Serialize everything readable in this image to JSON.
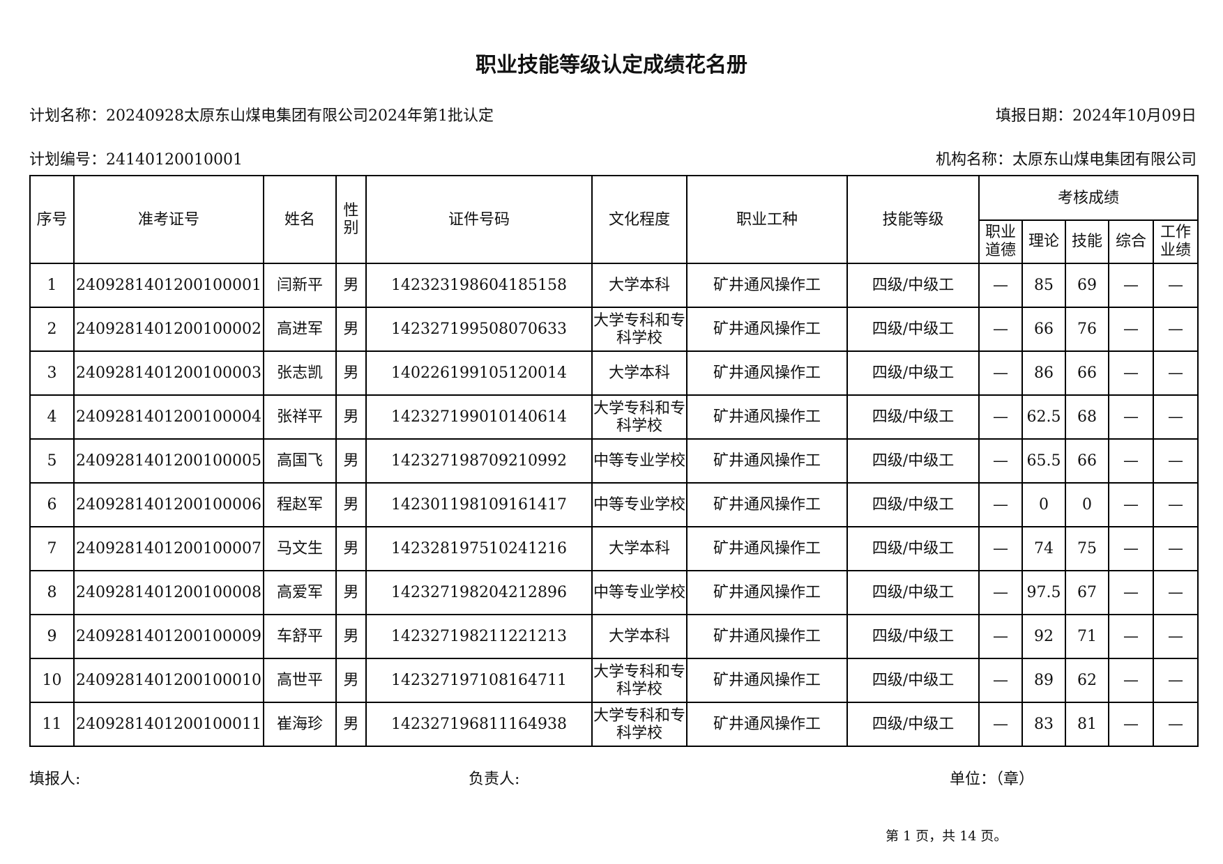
{
  "title": "职业技能等级认定成绩花名册",
  "info": {
    "plan_name_label": "计划名称：",
    "plan_name": "20240928太原东山煤电集团有限公司2024年第1批认定",
    "report_date_label": "填报日期：",
    "report_date": "2024年10月09日",
    "plan_no_label": "计划编号：",
    "plan_no": "24140120010001",
    "org_label": "机构名称：",
    "org": "太原东山煤电集团有限公司"
  },
  "table": {
    "headers": [
      "序号",
      "准考证号",
      "姓名",
      "性别",
      "证件号码",
      "文化程度",
      "职业工种",
      "技能等级"
    ],
    "score_group": "考核成绩",
    "score_headers": [
      "职业道德",
      "理论",
      "技能",
      "综合",
      "工作业绩"
    ],
    "rows": [
      {
        "no": "1",
        "exam_id": "2409281401200100001",
        "name": "闫新平",
        "gender": "男",
        "id_no": "142323198604185158",
        "edu": "大学本科",
        "job": "矿井通风操作工",
        "level": "四级/中级工",
        "ethics": "—",
        "theory": "85",
        "skill": "69",
        "overall": "—",
        "performance": "—"
      },
      {
        "no": "2",
        "exam_id": "2409281401200100002",
        "name": "高进军",
        "gender": "男",
        "id_no": "142327199508070633",
        "edu": "大学专科和专科学校",
        "job": "矿井通风操作工",
        "level": "四级/中级工",
        "ethics": "—",
        "theory": "66",
        "skill": "76",
        "overall": "—",
        "performance": "—"
      },
      {
        "no": "3",
        "exam_id": "2409281401200100003",
        "name": "张志凯",
        "gender": "男",
        "id_no": "140226199105120014",
        "edu": "大学本科",
        "job": "矿井通风操作工",
        "level": "四级/中级工",
        "ethics": "—",
        "theory": "86",
        "skill": "66",
        "overall": "—",
        "performance": "—"
      },
      {
        "no": "4",
        "exam_id": "2409281401200100004",
        "name": "张祥平",
        "gender": "男",
        "id_no": "142327199010140614",
        "edu": "大学专科和专科学校",
        "job": "矿井通风操作工",
        "level": "四级/中级工",
        "ethics": "—",
        "theory": "62.5",
        "skill": "68",
        "overall": "—",
        "performance": "—"
      },
      {
        "no": "5",
        "exam_id": "2409281401200100005",
        "name": "高国飞",
        "gender": "男",
        "id_no": "142327198709210992",
        "edu": "中等专业学校",
        "job": "矿井通风操作工",
        "level": "四级/中级工",
        "ethics": "—",
        "theory": "65.5",
        "skill": "66",
        "overall": "—",
        "performance": "—"
      },
      {
        "no": "6",
        "exam_id": "2409281401200100006",
        "name": "程赵军",
        "gender": "男",
        "id_no": "142301198109161417",
        "edu": "中等专业学校",
        "job": "矿井通风操作工",
        "level": "四级/中级工",
        "ethics": "—",
        "theory": "0",
        "skill": "0",
        "overall": "—",
        "performance": "—"
      },
      {
        "no": "7",
        "exam_id": "2409281401200100007",
        "name": "马文生",
        "gender": "男",
        "id_no": "142328197510241216",
        "edu": "大学本科",
        "job": "矿井通风操作工",
        "level": "四级/中级工",
        "ethics": "—",
        "theory": "74",
        "skill": "75",
        "overall": "—",
        "performance": "—"
      },
      {
        "no": "8",
        "exam_id": "2409281401200100008",
        "name": "高爱军",
        "gender": "男",
        "id_no": "142327198204212896",
        "edu": "中等专业学校",
        "job": "矿井通风操作工",
        "level": "四级/中级工",
        "ethics": "—",
        "theory": "97.5",
        "skill": "67",
        "overall": "—",
        "performance": "—"
      },
      {
        "no": "9",
        "exam_id": "2409281401200100009",
        "name": "车舒平",
        "gender": "男",
        "id_no": "142327198211221213",
        "edu": "大学本科",
        "job": "矿井通风操作工",
        "level": "四级/中级工",
        "ethics": "—",
        "theory": "92",
        "skill": "71",
        "overall": "—",
        "performance": "—"
      },
      {
        "no": "10",
        "exam_id": "2409281401200100010",
        "name": "高世平",
        "gender": "男",
        "id_no": "142327197108164711",
        "edu": "大学专科和专科学校",
        "job": "矿井通风操作工",
        "level": "四级/中级工",
        "ethics": "—",
        "theory": "89",
        "skill": "62",
        "overall": "—",
        "performance": "—"
      },
      {
        "no": "11",
        "exam_id": "2409281401200100011",
        "name": "崔海珍",
        "gender": "男",
        "id_no": "142327196811164938",
        "edu": "大学专科和专科学校",
        "job": "矿井通风操作工",
        "level": "四级/中级工",
        "ethics": "—",
        "theory": "83",
        "skill": "81",
        "overall": "—",
        "performance": "—"
      }
    ]
  },
  "footer": {
    "filler_label": "填报人:",
    "manager_label": "负责人:",
    "unit_label": "单位：（章）",
    "page_info": "第 1 页，共 14 页。"
  }
}
